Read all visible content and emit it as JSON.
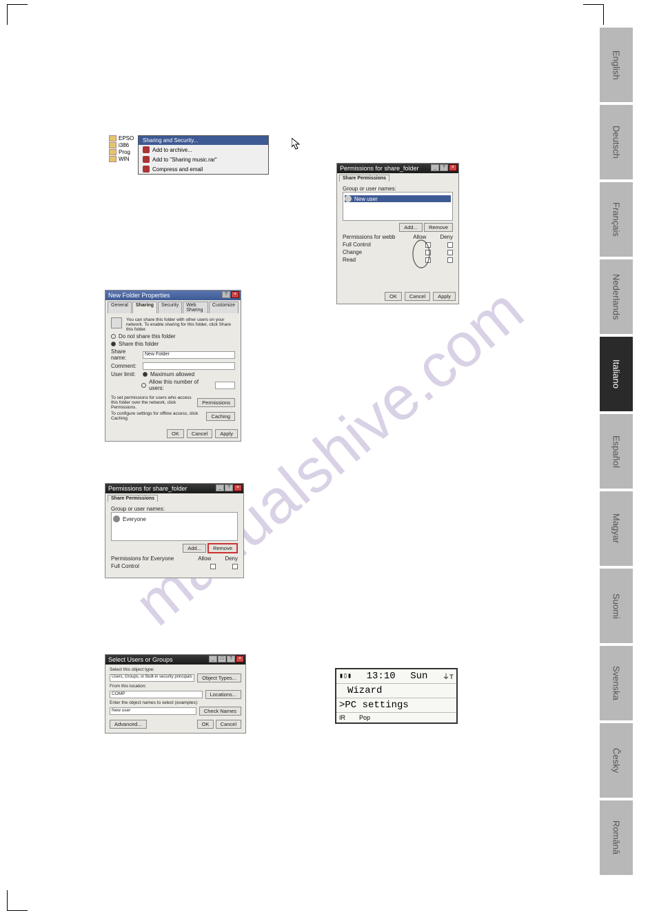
{
  "watermark": "manualshive.com",
  "languages": [
    {
      "label": "English",
      "active": false
    },
    {
      "label": "Deutsch",
      "active": false
    },
    {
      "label": "Français",
      "active": false
    },
    {
      "label": "Nederlands",
      "active": false
    },
    {
      "label": "Italiano",
      "active": true
    },
    {
      "label": "Español",
      "active": false
    },
    {
      "label": "Magyar",
      "active": false
    },
    {
      "label": "Suomi",
      "active": false
    },
    {
      "label": "Svenska",
      "active": false
    },
    {
      "label": "Česky",
      "active": false
    },
    {
      "label": "Română",
      "active": false
    }
  ],
  "context_menu": {
    "folders": [
      "EPSO",
      "i386",
      "Prog",
      "WIN"
    ],
    "items": {
      "sharing": "Sharing and Security...",
      "add_archive": "Add to archive...",
      "add_rar": "Add to \"Sharing music.rar\"",
      "compress": "Compress and email"
    }
  },
  "folder_props": {
    "title": "New Folder Properties",
    "tabs": [
      "General",
      "Sharing",
      "Security",
      "Web Sharing",
      "Customize"
    ],
    "active_tab": "Sharing",
    "desc": "You can share this folder with other users on your network. To enable sharing for this folder, click Share this folder.",
    "radio1": "Do not share this folder",
    "radio2": "Share this folder",
    "share_name_lbl": "Share name:",
    "share_name_val": "New Folder",
    "comment_lbl": "Comment:",
    "user_limit_lbl": "User limit:",
    "max_allowed": "Maximum allowed",
    "allow_num": "Allow this number of users:",
    "perm_desc": "To set permissions for users who access this folder over the network, click Permissions.",
    "perm_btn": "Permissions",
    "cache_desc": "To configure settings for offline access, click Caching.",
    "cache_btn": "Caching",
    "ok": "OK",
    "cancel": "Cancel",
    "apply": "Apply"
  },
  "permissions1": {
    "title": "Permissions for share_folder",
    "tab": "Share Permissions",
    "group_lbl": "Group or user names:",
    "user": "Everyone",
    "add": "Add...",
    "remove": "Remove",
    "perms_for": "Permissions for Everyone",
    "allow": "Allow",
    "deny": "Deny",
    "full": "Full Control"
  },
  "select_users": {
    "title": "Select Users or Groups",
    "obj_type_lbl": "Select this object type:",
    "obj_type_val": "Users, Groups, or Built-in security principals",
    "obj_type_btn": "Object Types...",
    "loc_lbl": "From this location:",
    "loc_val": "COMP",
    "loc_btn": "Locations...",
    "names_lbl": "Enter the object names to select (examples):",
    "names_val": "New user",
    "check_btn": "Check Names",
    "advanced": "Advanced...",
    "ok": "OK",
    "cancel": "Cancel"
  },
  "permissions2": {
    "title": "Permissions for share_folder",
    "tab": "Share Permissions",
    "group_lbl": "Group or user names:",
    "user": "New user",
    "add": "Add...",
    "remove": "Remove",
    "perms_for": "Permissions for webb",
    "allow": "Allow",
    "deny": "Deny",
    "p1": "Full Control",
    "p2": "Change",
    "p3": "Read",
    "ok": "OK",
    "cancel": "Cancel",
    "apply": "Apply"
  },
  "lcd": {
    "time": "13:10",
    "day": "Sun",
    "line1": "Wizard",
    "line2": ">PC settings",
    "ir": "IR",
    "pop": "Pop"
  }
}
